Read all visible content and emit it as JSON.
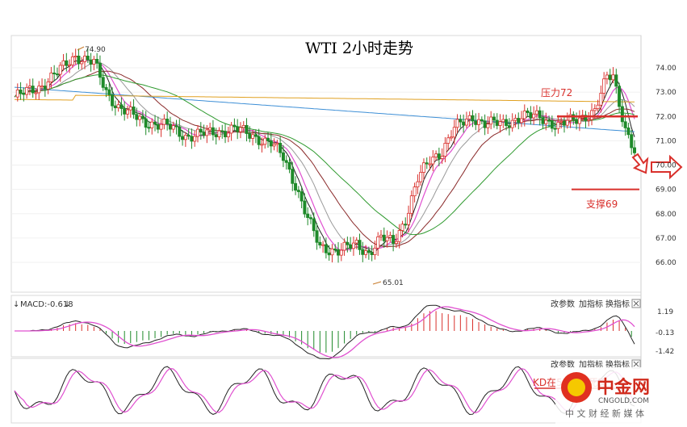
{
  "chart_data": {
    "type": "candlestick",
    "title": "WTI 2小时走势",
    "y_ticks": [
      "74.00",
      "73.00",
      "72.00",
      "71.00",
      "70.00",
      "69.00",
      "68.00",
      "67.00",
      "66.00"
    ],
    "ylim": [
      65.0,
      75.0
    ],
    "annotations": {
      "high_label": "74.90",
      "low_label": "65.01",
      "resistance_label": "压力72",
      "resistance_value": 72,
      "support_label": "支撑69",
      "support_value": 69
    },
    "macd": {
      "label": "MACD:-0.618",
      "ticks": [
        "1.19",
        "-0.13",
        "-1.42"
      ]
    },
    "kdj": {
      "label": "KD在50下方死叉"
    },
    "toolbar": [
      "改参数",
      "加指标",
      "换指标"
    ],
    "colors": {
      "up": "#d9302c",
      "down": "#1f8a2a",
      "ma_black": "#222222",
      "ma_pink": "#e050d0",
      "ma_gray": "#9a9a9a",
      "ma_maroon": "#8a2a2a",
      "ma_blue": "#3d8fd6",
      "ma_green": "#2f9a2f",
      "ma_yellow": "#e0a020"
    }
  },
  "watermark": {
    "brand": "中金网",
    "site": "CNGOLD.COM",
    "slogan": "中 文 财 经 新 媒 体"
  }
}
